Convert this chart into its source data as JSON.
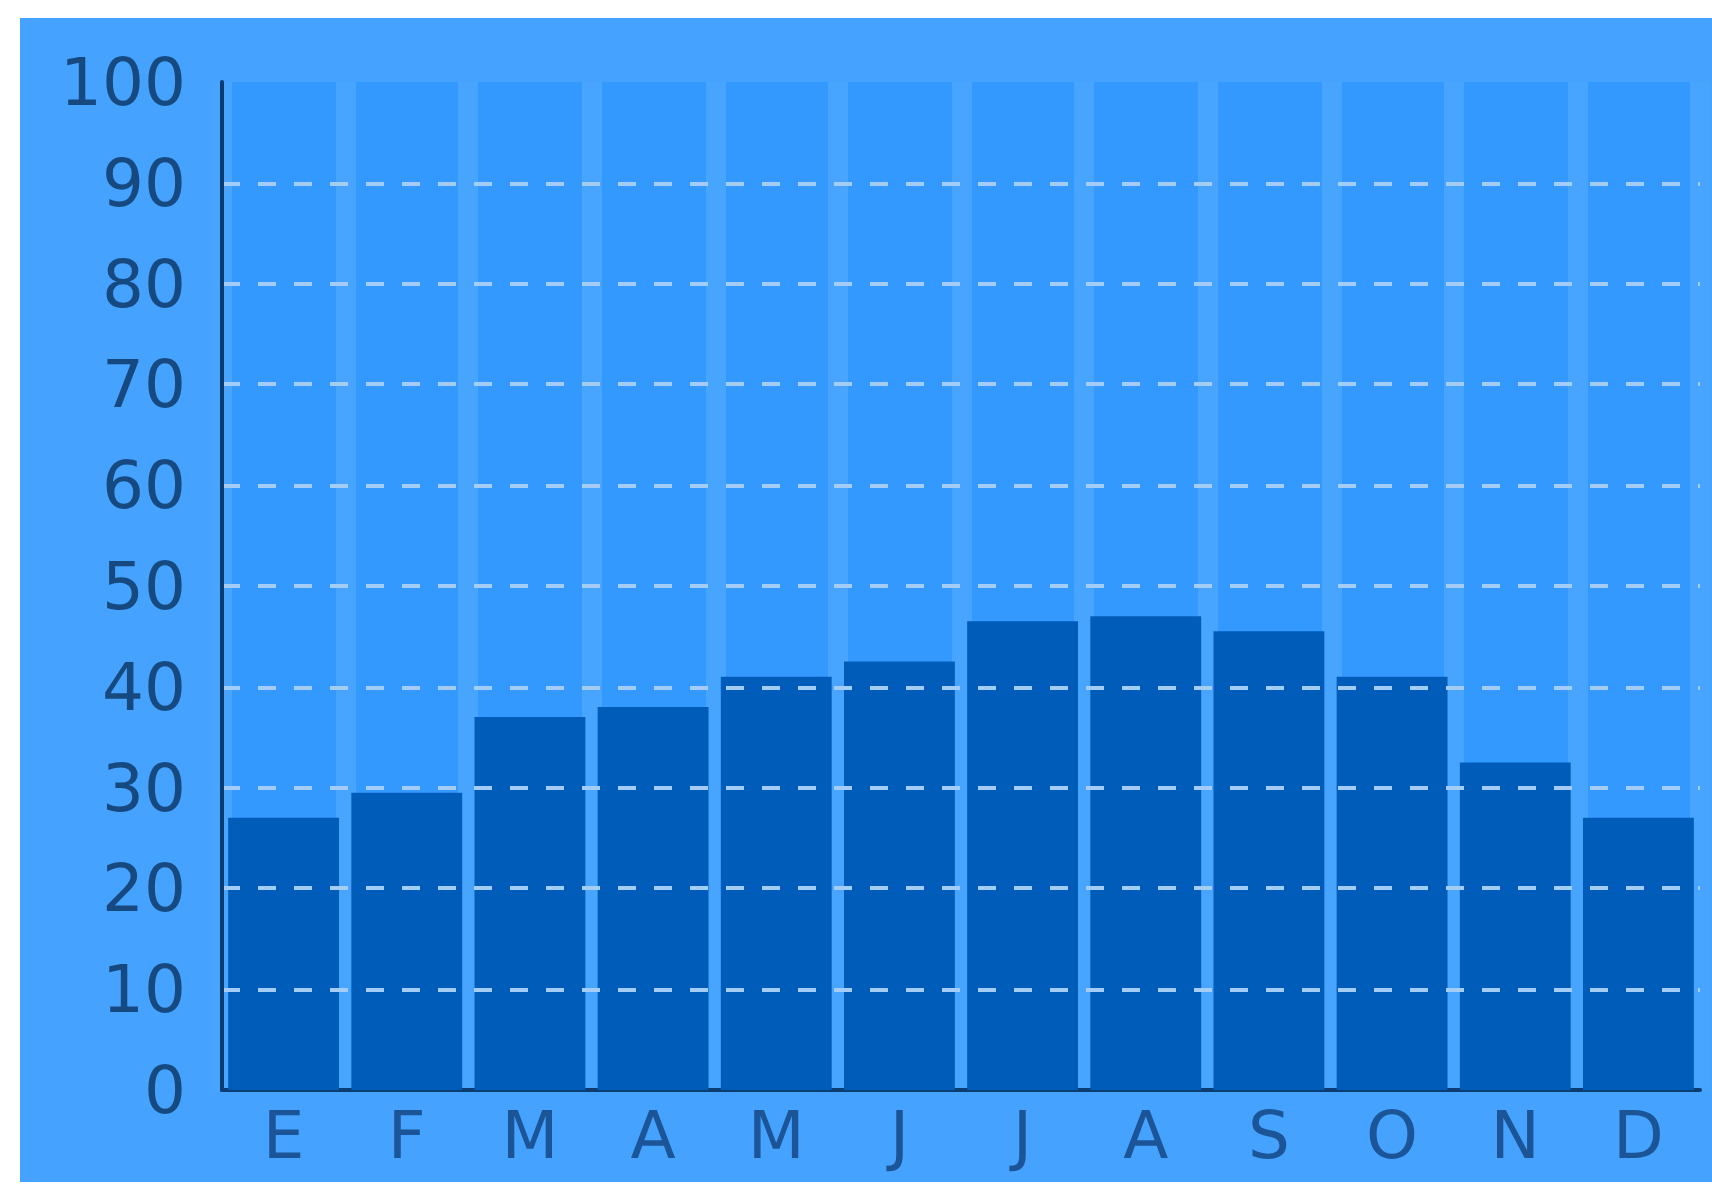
{
  "chart_data": {
    "type": "bar",
    "categories": [
      "E",
      "F",
      "M",
      "A",
      "M",
      "J",
      "J",
      "A",
      "S",
      "O",
      "N",
      "D"
    ],
    "values": [
      27,
      29.5,
      37,
      38,
      41,
      42.5,
      46.5,
      47,
      45.5,
      41,
      32.5,
      27
    ],
    "color": "#005cb9",
    "ylim": [
      0,
      100
    ],
    "yticks": [
      0,
      10,
      20,
      30,
      40,
      50,
      60,
      70,
      80,
      90,
      100
    ],
    "grid": true
  }
}
